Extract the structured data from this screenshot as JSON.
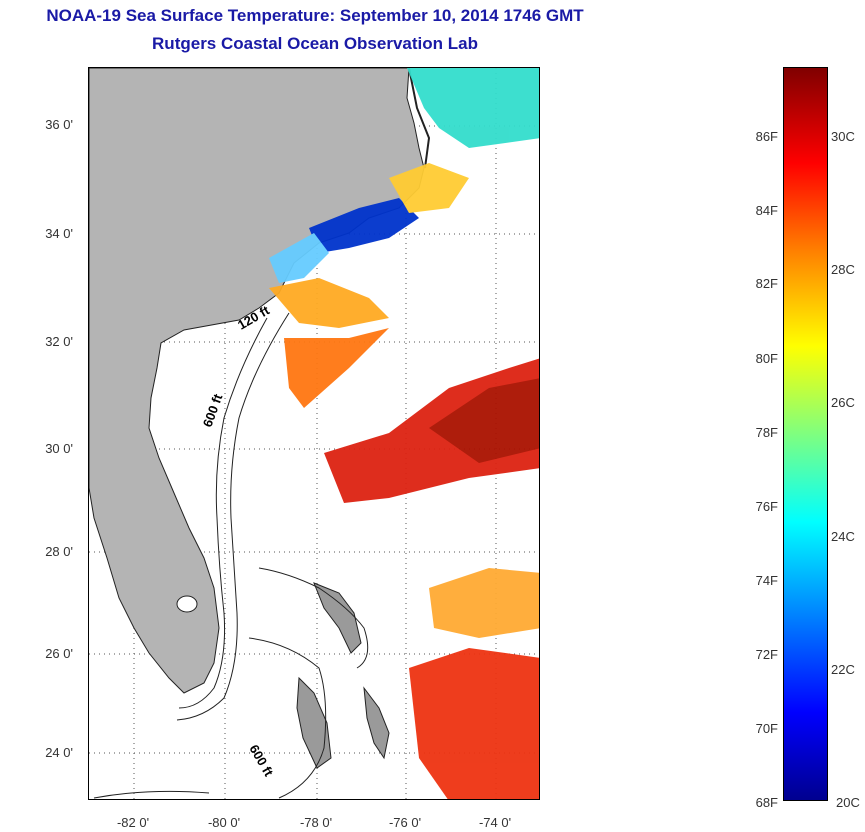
{
  "title": {
    "line1": "NOAA-19 Sea Surface Temperature:  September 10, 2014 1746 GMT",
    "line2": "Rutgers Coastal Ocean Observation Lab"
  },
  "map": {
    "lat_labels": [
      "36 0'",
      "34 0'",
      "32 0'",
      "30 0'",
      "28 0'",
      "26 0'",
      "24 0'"
    ],
    "lon_labels": [
      "-82 0'",
      "-80 0'",
      "-78 0'",
      "-76 0'",
      "-74 0'"
    ],
    "contour_labels": [
      "120 ft",
      "600 ft",
      "600 ft"
    ]
  },
  "colorbar": {
    "fahrenheit_labels": [
      "86F",
      "84F",
      "82F",
      "80F",
      "78F",
      "76F",
      "74F",
      "72F",
      "70F",
      "68F"
    ],
    "celsius_labels": [
      "30C",
      "28C",
      "26C",
      "24C",
      "22C",
      "20C"
    ],
    "colors": [
      "#00008f",
      "#0000ff",
      "#0080ff",
      "#00ffff",
      "#7fff7f",
      "#ffff00",
      "#ff8000",
      "#ff0000",
      "#800000"
    ]
  },
  "colors": {
    "title": "#1a1aa6",
    "land": "#b4b4b4",
    "water": "#ffffff"
  }
}
